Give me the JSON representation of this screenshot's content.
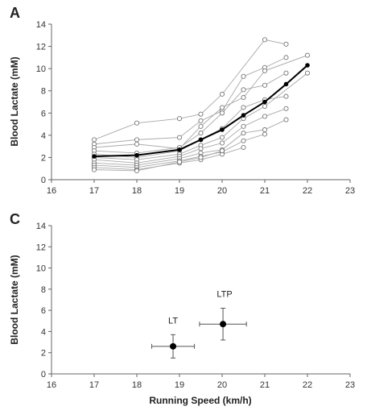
{
  "chart_data": [
    {
      "panel": "A",
      "type": "line",
      "xlabel": "",
      "ylabel": "Blood Lactate (mM)",
      "xlim": [
        16,
        23
      ],
      "ylim": [
        0,
        14
      ],
      "xticks": [
        "16",
        "17",
        "18",
        "19",
        "20",
        "21",
        "22",
        "23"
      ],
      "yticks": [
        "0",
        "2",
        "4",
        "6",
        "8",
        "10",
        "12",
        "14"
      ],
      "individual_series": [
        {
          "x": [
            17,
            18,
            19,
            19.5,
            20,
            21,
            21.5
          ],
          "y": [
            3.6,
            5.1,
            5.5,
            5.9,
            7.7,
            12.6,
            12.2
          ]
        },
        {
          "x": [
            17,
            18,
            19,
            19.5,
            20,
            20.5,
            21,
            21.5
          ],
          "y": [
            3.2,
            3.6,
            3.8,
            5.3,
            6.2,
            9.3,
            10.1,
            11.0
          ]
        },
        {
          "x": [
            17,
            18,
            19,
            19.5,
            20,
            20.5,
            21,
            22
          ],
          "y": [
            2.9,
            3.2,
            2.8,
            4.8,
            6.5,
            7.4,
            9.8,
            11.2
          ]
        },
        {
          "x": [
            17,
            18,
            19,
            19.5,
            20,
            20.5,
            21,
            21.5
          ],
          "y": [
            2.6,
            2.4,
            2.9,
            4.2,
            6.0,
            8.1,
            8.5,
            9.6
          ]
        },
        {
          "x": [
            17,
            18,
            19,
            19.5,
            20,
            20.5,
            21,
            21.5
          ],
          "y": [
            2.3,
            2.0,
            2.6,
            3.6,
            4.6,
            6.5,
            7.2,
            7.5
          ]
        },
        {
          "x": [
            17,
            18,
            19,
            19.5,
            20,
            20.5,
            21,
            22
          ],
          "y": [
            2.0,
            1.8,
            2.3,
            3.1,
            3.8,
            5.5,
            6.6,
            9.6
          ]
        },
        {
          "x": [
            17,
            18,
            19,
            19.5,
            20,
            20.5,
            21,
            21.5
          ],
          "y": [
            1.8,
            1.5,
            2.1,
            2.8,
            3.3,
            4.8,
            5.7,
            6.4
          ]
        },
        {
          "x": [
            17,
            18,
            19,
            19.5,
            20,
            20.5,
            21,
            21.5
          ],
          "y": [
            1.5,
            1.3,
            1.9,
            2.4,
            2.7,
            4.2,
            4.5,
            5.4
          ]
        },
        {
          "x": [
            17,
            18,
            19,
            19.5,
            20,
            20.5,
            21
          ],
          "y": [
            1.3,
            1.1,
            1.7,
            2.1,
            2.5,
            3.5,
            4.1
          ]
        },
        {
          "x": [
            17,
            18,
            19,
            19.5,
            20,
            20.5
          ],
          "y": [
            1.1,
            0.9,
            1.5,
            1.8,
            2.3,
            2.9
          ]
        },
        {
          "x": [
            17,
            18,
            19,
            19.5,
            20
          ],
          "y": [
            0.9,
            0.8,
            1.6,
            2.0,
            2.6
          ]
        }
      ],
      "mean_series": {
        "x": [
          17,
          18,
          19,
          19.5,
          20,
          20.5,
          21,
          21.5,
          22
        ],
        "y": [
          2.1,
          2.2,
          2.7,
          3.6,
          4.5,
          5.8,
          7.0,
          8.6,
          10.3
        ]
      }
    },
    {
      "panel": "C",
      "type": "scatter",
      "xlabel": "Running Speed (km/h)",
      "ylabel": "Blood Lactate (mM)",
      "xlim": [
        16,
        23
      ],
      "ylim": [
        0,
        14
      ],
      "xticks": [
        "16",
        "17",
        "18",
        "19",
        "20",
        "21",
        "22",
        "23"
      ],
      "yticks": [
        "0",
        "2",
        "4",
        "6",
        "8",
        "10",
        "12",
        "14"
      ],
      "points": [
        {
          "label": "LT",
          "x": 18.85,
          "y": 2.6,
          "x_err": 0.5,
          "y_err": 1.1
        },
        {
          "label": "LTP",
          "x": 20.02,
          "y": 4.7,
          "x_err": 0.55,
          "y_err": 1.5
        }
      ]
    }
  ]
}
